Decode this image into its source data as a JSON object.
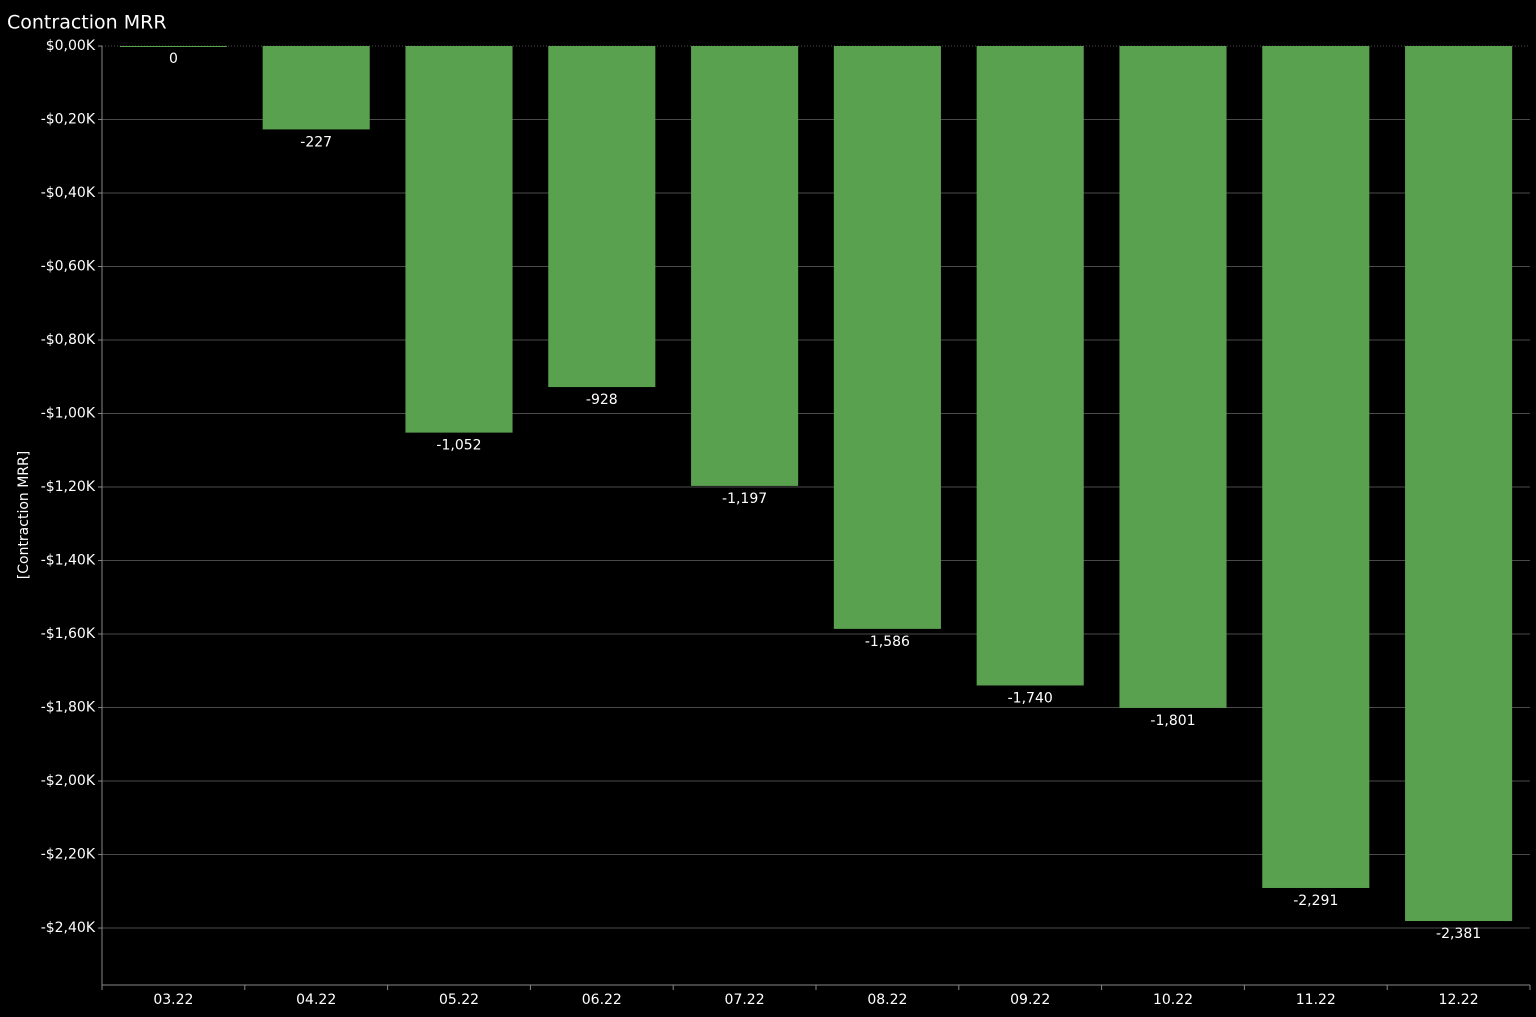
{
  "chart_data": {
    "type": "bar",
    "title": "Contraction MRR",
    "y_label": "[Contraction MRR]",
    "categories": [
      "03.22",
      "04.22",
      "05.22",
      "06.22",
      "07.22",
      "08.22",
      "09.22",
      "10.22",
      "11.22",
      "12.22"
    ],
    "values": [
      0,
      -227,
      -1052,
      -928,
      -1197,
      -1586,
      -1740,
      -1801,
      -2291,
      -2381
    ],
    "value_labels": [
      "0",
      "-227",
      "-1,052",
      "-928",
      "-1,197",
      "-1,586",
      "-1,740",
      "-1,801",
      "-2,291",
      "-2,381"
    ],
    "color": "#59a14f",
    "ylim": [
      -2555,
      0
    ],
    "yticks": [
      {
        "value": 0,
        "label": "$0,00K"
      },
      {
        "value": -200,
        "label": "-$0,20K"
      },
      {
        "value": -400,
        "label": "-$0,40K"
      },
      {
        "value": -600,
        "label": "-$0,60K"
      },
      {
        "value": -800,
        "label": "-$0,80K"
      },
      {
        "value": -1000,
        "label": "-$1,00K"
      },
      {
        "value": -1200,
        "label": "-$1,20K"
      },
      {
        "value": -1400,
        "label": "-$1,40K"
      },
      {
        "value": -1600,
        "label": "-$1,60K"
      },
      {
        "value": -1800,
        "label": "-$1,80K"
      },
      {
        "value": -2000,
        "label": "-$2,00K"
      },
      {
        "value": -2200,
        "label": "-$2,20K"
      },
      {
        "value": -2400,
        "label": "-$2,40K"
      }
    ],
    "grid": true
  }
}
